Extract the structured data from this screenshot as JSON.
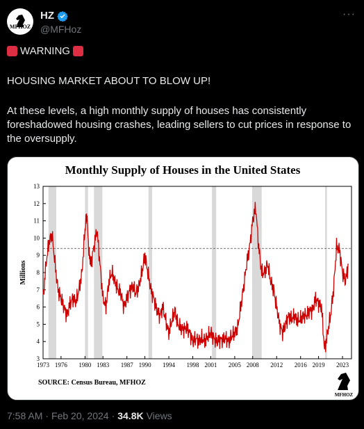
{
  "tweet": {
    "author_name": "HZ",
    "handle": "@MFHoz",
    "avatar_text": "MFHOZ",
    "warning_label": "WARNING",
    "headline": "HOUSING MARKET ABOUT TO BLOW UP!",
    "body": "At these levels, a high monthly supply of houses has consistently foreshadowed housing crashes, leading sellers to cut prices in response to the oversupply.",
    "time": "7:58 AM",
    "date": "Feb 20, 2024",
    "views_count": "34.8K",
    "views_label": "Views",
    "more_label": "···"
  },
  "colors": {
    "line": "#cc0000",
    "recession": "#d9d9d9",
    "verified": "#1d9bf0",
    "warning": "#dd2e44"
  },
  "chart_data": {
    "type": "line",
    "title": "Monthly Supply of Houses in the United States",
    "ylabel": "Millions",
    "xlabel": "",
    "source": "SOURCE: Census Bureau, MFHOZ",
    "watermark": "MFHOZ",
    "ylim": [
      3,
      13
    ],
    "xlim": [
      1973,
      2024.5
    ],
    "yticks": [
      3,
      4,
      5,
      6,
      7,
      8,
      9,
      10,
      11,
      12,
      13
    ],
    "xtick_labels": [
      "1973",
      "1976",
      "1980",
      "1983",
      "1987",
      "1990",
      "1994",
      "1998",
      "2001",
      "2005",
      "2008",
      "2012",
      "2016",
      "2019",
      "2023"
    ],
    "xtick_values": [
      1973,
      1976,
      1980,
      1983,
      1987,
      1990,
      1994,
      1998,
      2001,
      2005,
      2008,
      2012,
      2016,
      2019,
      2023
    ],
    "reference_line": 9.4,
    "recessions": [
      [
        1973.9,
        1975.2
      ],
      [
        1980.0,
        1980.5
      ],
      [
        1981.5,
        1982.9
      ],
      [
        1990.6,
        1991.2
      ],
      [
        2001.2,
        2001.9
      ],
      [
        2007.9,
        2009.5
      ],
      [
        2020.1,
        2020.4
      ]
    ],
    "series": [
      {
        "x": [
          1973.0,
          1973.5,
          1974.0,
          1974.5,
          1975.0,
          1975.5,
          1976.0,
          1976.5,
          1977.0,
          1977.5,
          1978.0,
          1978.5,
          1979.0,
          1979.5,
          1980.0,
          1980.3,
          1980.7,
          1981.0,
          1981.5,
          1982.0,
          1982.5,
          1983.0,
          1983.5,
          1984.0,
          1984.5,
          1985.0,
          1985.5,
          1986.0,
          1986.5,
          1987.0,
          1987.5,
          1988.0,
          1988.5,
          1989.0,
          1989.5,
          1990.0,
          1990.5,
          1991.0,
          1991.5,
          1992.0,
          1992.5,
          1993.0,
          1993.5,
          1994.0,
          1994.5,
          1995.0,
          1995.5,
          1996.0,
          1996.5,
          1997.0,
          1997.5,
          1998.0,
          1998.5,
          1999.0,
          1999.5,
          2000.0,
          2000.5,
          2001.0,
          2001.5,
          2002.0,
          2002.5,
          2003.0,
          2003.5,
          2004.0,
          2004.5,
          2005.0,
          2005.5,
          2006.0,
          2006.5,
          2007.0,
          2007.5,
          2008.0,
          2008.5,
          2009.0,
          2009.5,
          2010.0,
          2010.5,
          2011.0,
          2011.5,
          2012.0,
          2012.5,
          2013.0,
          2013.5,
          2014.0,
          2014.5,
          2015.0,
          2015.5,
          2016.0,
          2016.5,
          2017.0,
          2017.5,
          2018.0,
          2018.5,
          2019.0,
          2019.5,
          2020.0,
          2020.5,
          2021.0,
          2021.5,
          2022.0,
          2022.5,
          2023.0,
          2023.5,
          2024.0
        ],
        "y": [
          6.5,
          8.5,
          9.8,
          10.2,
          8.5,
          7.0,
          6.5,
          6.0,
          5.5,
          6.2,
          6.5,
          6.3,
          7.0,
          8.0,
          10.5,
          11.4,
          9.0,
          8.5,
          9.5,
          10.5,
          8.5,
          6.5,
          6.0,
          7.5,
          8.0,
          7.5,
          7.0,
          6.8,
          6.0,
          6.5,
          7.0,
          7.2,
          6.8,
          7.2,
          8.0,
          9.0,
          8.0,
          7.0,
          6.5,
          5.8,
          5.5,
          6.0,
          5.2,
          4.5,
          5.2,
          5.8,
          5.0,
          4.8,
          4.7,
          4.8,
          4.5,
          4.0,
          4.2,
          4.0,
          4.2,
          4.0,
          4.3,
          4.5,
          4.2,
          4.0,
          4.1,
          4.1,
          4.2,
          4.0,
          4.3,
          4.5,
          4.8,
          6.0,
          7.2,
          8.5,
          9.5,
          11.0,
          11.8,
          9.5,
          8.0,
          8.0,
          8.5,
          7.5,
          7.0,
          6.0,
          5.0,
          4.5,
          5.0,
          5.5,
          5.3,
          5.5,
          5.2,
          5.3,
          5.5,
          5.5,
          5.8,
          5.8,
          6.5,
          6.2,
          6.0,
          3.5,
          4.5,
          5.5,
          7.0,
          9.5,
          9.3,
          8.0,
          7.5,
          8.5
        ]
      }
    ]
  }
}
